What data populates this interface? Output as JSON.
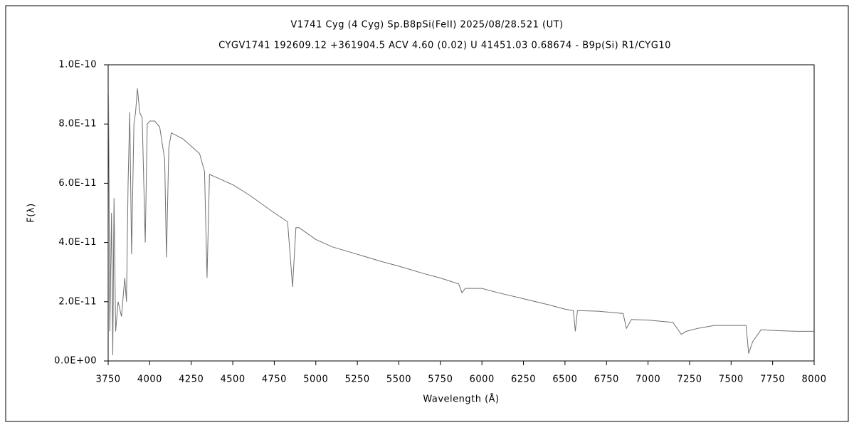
{
  "chart_data": {
    "type": "line",
    "title": "V1741 Cyg (4 Cyg)   Sp.B8pSi(FeII)   2025/08/28.521 (UT)",
    "subtitle": "CYGV1741 192609.12 +361904.5 ACV 4.60 (0.02) U 41451.03 0.68674 - B9p(Si) R1/CYG10",
    "xlabel": "Wavelength (Å)",
    "ylabel": "F(λ)",
    "color": "#707070",
    "x": [
      3752,
      3760,
      3770,
      3778,
      3785,
      3795,
      3810,
      3830,
      3850,
      3860,
      3870,
      3880,
      3891,
      3905,
      3915,
      3926,
      3940,
      3955,
      3973,
      3985,
      4000,
      4030,
      4060,
      4090,
      4101,
      4115,
      4130,
      4200,
      4260,
      4300,
      4330,
      4345,
      4360,
      4400,
      4500,
      4600,
      4750,
      4830,
      4860,
      4880,
      4900,
      5000,
      5100,
      5250,
      5400,
      5500,
      5650,
      5750,
      5860,
      5880,
      5900,
      6000,
      6100,
      6250,
      6400,
      6500,
      6550,
      6562,
      6575,
      6700,
      6850,
      6870,
      6900,
      7000,
      7150,
      7200,
      7230,
      7300,
      7400,
      7500,
      7590,
      7606,
      7630,
      7680,
      7800,
      7900,
      8000
    ],
    "values": [
      9e-11,
      1e-11,
      5e-11,
      2e-12,
      5.5e-11,
      1e-11,
      2e-11,
      1.5e-11,
      2.8e-11,
      2e-11,
      6e-11,
      8.4e-11,
      3.6e-11,
      8e-11,
      8.4e-11,
      9.2e-11,
      8.4e-11,
      8.2e-11,
      4e-11,
      8e-11,
      8.1e-11,
      8.1e-11,
      7.9e-11,
      6.8e-11,
      3.5e-11,
      7.2e-11,
      7.7e-11,
      7.5e-11,
      7.2e-11,
      7e-11,
      6.4e-11,
      2.8e-11,
      6.3e-11,
      6.2e-11,
      5.95e-11,
      5.6e-11,
      5e-11,
      4.7e-11,
      2.5e-11,
      4.5e-11,
      4.5e-11,
      4.1e-11,
      3.85e-11,
      3.6e-11,
      3.35e-11,
      3.2e-11,
      2.95e-11,
      2.8e-11,
      2.6e-11,
      2.3e-11,
      2.45e-11,
      2.45e-11,
      2.3e-11,
      2.1e-11,
      1.9e-11,
      1.75e-11,
      1.7e-11,
      1e-11,
      1.7e-11,
      1.68e-11,
      1.6e-11,
      1.1e-11,
      1.4e-11,
      1.38e-11,
      1.3e-11,
      9e-12,
      1e-11,
      1.1e-11,
      1.2e-11,
      1.2e-11,
      1.2e-11,
      2.5e-12,
      6.5e-12,
      1.05e-11,
      1.02e-11,
      1e-11,
      1e-11
    ],
    "xlim": [
      3750,
      8000
    ],
    "xticks": [
      3750,
      4000,
      4250,
      4500,
      4750,
      5000,
      5250,
      5500,
      5750,
      6000,
      6250,
      6500,
      6750,
      7000,
      7250,
      7500,
      7750,
      8000
    ],
    "ylim": [
      0,
      1e-10
    ],
    "yticks": [
      {
        "value": 0,
        "label": "0.0E+00"
      },
      {
        "value": 2e-11,
        "label": "2.0E-11"
      },
      {
        "value": 4e-11,
        "label": "4.0E-11"
      },
      {
        "value": 6e-11,
        "label": "6.0E-11"
      },
      {
        "value": 8e-11,
        "label": "8.0E-11"
      },
      {
        "value": 1e-10,
        "label": "1.0E-10"
      }
    ]
  }
}
